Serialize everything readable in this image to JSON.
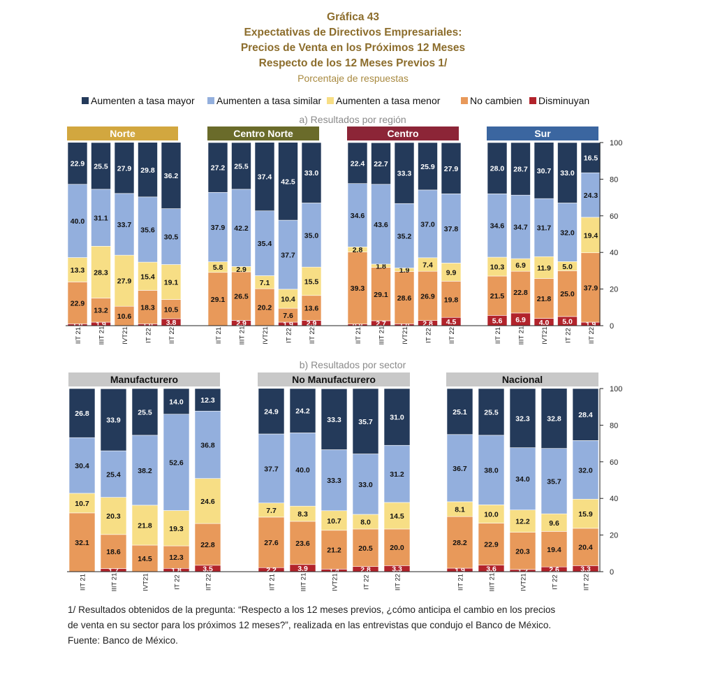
{
  "title": {
    "number": "Gráfica 43",
    "line1": "Expectativas de Directivos Empresariales:",
    "line2": "Precios de Venta en los Próximos 12 Meses",
    "line3": "Respecto de los 12 Meses Previos 1/",
    "subtitle": "Porcentaje de respuestas"
  },
  "colors": {
    "aumenten_mayor": "#243a5a",
    "aumenten_similar": "#93afdd",
    "aumenten_menor": "#f7de85",
    "no_cambien": "#e8995a",
    "disminuyan": "#b2232b",
    "norte": "#d2a73f",
    "centro_norte": "#6a6b2a",
    "centro": "#8c2537",
    "sur": "#3b66a0",
    "sector_header": "#c8c8c8"
  },
  "chart_data": {
    "type": "bar",
    "stacked": true,
    "ylim": [
      0,
      100
    ],
    "yticks": [
      0,
      20,
      40,
      60,
      80,
      100
    ],
    "legend": [
      {
        "key": "aumenten_mayor",
        "label": "Aumenten a tasa mayor"
      },
      {
        "key": "aumenten_similar",
        "label": "Aumenten a tasa similar"
      },
      {
        "key": "aumenten_menor",
        "label": "Aumenten a tasa menor"
      },
      {
        "key": "no_cambien",
        "label": "No cambien"
      },
      {
        "key": "disminuyan",
        "label": "Disminuyan"
      }
    ],
    "legend_position": "top",
    "series_order": [
      "disminuyan",
      "no_cambien",
      "aumenten_menor",
      "aumenten_similar",
      "aumenten_mayor"
    ],
    "panels": [
      {
        "title": "a) Resultados por región",
        "groups": [
          {
            "name": "Norte",
            "header_color": "norte",
            "header_text": "#ffffff",
            "categories": [
              "IIT 21",
              "IIIT 21",
              "IVT21",
              "IT 22",
              "IIT 22"
            ],
            "series": {
              "aumenten_mayor": [
                22.9,
                25.5,
                27.9,
                29.8,
                36.2
              ],
              "aumenten_similar": [
                40.0,
                31.1,
                33.7,
                35.6,
                30.5
              ],
              "aumenten_menor": [
                13.3,
                28.3,
                27.9,
                15.4,
                19.1
              ],
              "no_cambien": [
                22.9,
                13.2,
                10.6,
                18.3,
                10.5
              ],
              "disminuyan": [
                1.0,
                1.9,
                0.0,
                1.0,
                3.8
              ]
            }
          },
          {
            "name": "Centro Norte",
            "header_color": "centro_norte",
            "header_text": "#ffffff",
            "categories": [
              "IIT 21",
              "IIIT 21",
              "IVT21",
              "IT 22",
              "IIT 22"
            ],
            "series": {
              "aumenten_mayor": [
                27.2,
                25.5,
                37.4,
                42.5,
                33.0
              ],
              "aumenten_similar": [
                37.9,
                42.2,
                35.4,
                37.7,
                35.0
              ],
              "aumenten_menor": [
                5.8,
                2.9,
                7.1,
                10.4,
                15.5
              ],
              "no_cambien": [
                29.1,
                26.5,
                20.2,
                7.6,
                13.6
              ],
              "disminuyan": [
                0.0,
                2.9,
                0.0,
                1.9,
                2.9
              ]
            }
          },
          {
            "name": "Centro",
            "header_color": "centro",
            "header_text": "#ffffff",
            "categories": [
              "IIT 21",
              "IIIT 21",
              "IVT21",
              "IT 22",
              "IIT 22"
            ],
            "series": {
              "aumenten_mayor": [
                22.4,
                22.7,
                33.3,
                25.9,
                27.9
              ],
              "aumenten_similar": [
                34.6,
                43.6,
                35.2,
                37.0,
                37.8
              ],
              "aumenten_menor": [
                2.8,
                1.8,
                1.9,
                7.4,
                9.9
              ],
              "no_cambien": [
                39.3,
                29.1,
                28.6,
                26.9,
                19.8
              ],
              "disminuyan": [
                0.9,
                2.7,
                1.0,
                2.8,
                4.5
              ]
            }
          },
          {
            "name": "Sur",
            "header_color": "sur",
            "header_text": "#ffffff",
            "categories": [
              "IIT 21",
              "IIIT 21",
              "IVT21",
              "IT 22",
              "IIT 22"
            ],
            "series": {
              "aumenten_mayor": [
                28.0,
                28.7,
                30.7,
                33.0,
                16.5
              ],
              "aumenten_similar": [
                34.6,
                34.7,
                31.7,
                32.0,
                24.3
              ],
              "aumenten_menor": [
                10.3,
                6.9,
                11.9,
                5.0,
                19.4
              ],
              "no_cambien": [
                21.5,
                22.8,
                21.8,
                25.0,
                37.9
              ],
              "disminuyan": [
                5.6,
                6.9,
                4.0,
                5.0,
                1.9
              ]
            }
          }
        ]
      },
      {
        "title": "b) Resultados por sector",
        "groups": [
          {
            "name": "Manufacturero",
            "header_color": "sector_header",
            "header_text": "#111111",
            "categories": [
              "IIT 21",
              "IIIT 21",
              "IVT21",
              "IT 22",
              "IIT 22"
            ],
            "series": {
              "aumenten_mayor": [
                26.8,
                33.9,
                25.5,
                14.0,
                12.3
              ],
              "aumenten_similar": [
                30.4,
                25.4,
                38.2,
                52.6,
                36.8
              ],
              "aumenten_menor": [
                10.7,
                20.3,
                21.8,
                19.3,
                24.6
              ],
              "no_cambien": [
                32.1,
                18.6,
                14.5,
                12.3,
                22.8
              ],
              "disminuyan": [
                0.0,
                1.7,
                0.0,
                1.8,
                3.5
              ]
            }
          },
          {
            "name": "No Manufacturero",
            "header_color": "sector_header",
            "header_text": "#111111",
            "categories": [
              "IIT 21",
              "IIIT 21",
              "IVT21",
              "IT 22",
              "IIT 22"
            ],
            "series": {
              "aumenten_mayor": [
                24.9,
                24.2,
                33.3,
                35.7,
                31.0
              ],
              "aumenten_similar": [
                37.7,
                40.0,
                33.3,
                33.0,
                31.2
              ],
              "aumenten_menor": [
                7.7,
                8.3,
                10.7,
                8.0,
                14.5
              ],
              "no_cambien": [
                27.6,
                23.6,
                21.2,
                20.5,
                20.0
              ],
              "disminuyan": [
                2.2,
                3.9,
                1.4,
                2.8,
                3.3
              ]
            }
          },
          {
            "name": "Nacional",
            "header_color": "sector_header",
            "header_text": "#111111",
            "categories": [
              "IIT 21",
              "IIIT 21",
              "IVT21",
              "IT 22",
              "IIT 22"
            ],
            "series": {
              "aumenten_mayor": [
                25.1,
                25.5,
                32.3,
                32.8,
                28.4
              ],
              "aumenten_similar": [
                36.7,
                38.0,
                34.0,
                35.7,
                32.0
              ],
              "aumenten_menor": [
                8.1,
                10.0,
                12.2,
                9.6,
                15.9
              ],
              "no_cambien": [
                28.2,
                22.9,
                20.3,
                19.4,
                20.4
              ],
              "disminuyan": [
                1.9,
                3.6,
                1.2,
                2.6,
                3.3
              ]
            }
          }
        ]
      }
    ]
  },
  "footnote": {
    "line1": "1/ Resultados obtenidos de la pregunta: “Respecto a los 12 meses previos, ¿cómo anticipa el cambio en los precios",
    "line2": "de venta en su sector para los próximos 12 meses?”, realizada en las entrevistas que condujo el Banco de México.",
    "line3": "Fuente: Banco de México."
  }
}
